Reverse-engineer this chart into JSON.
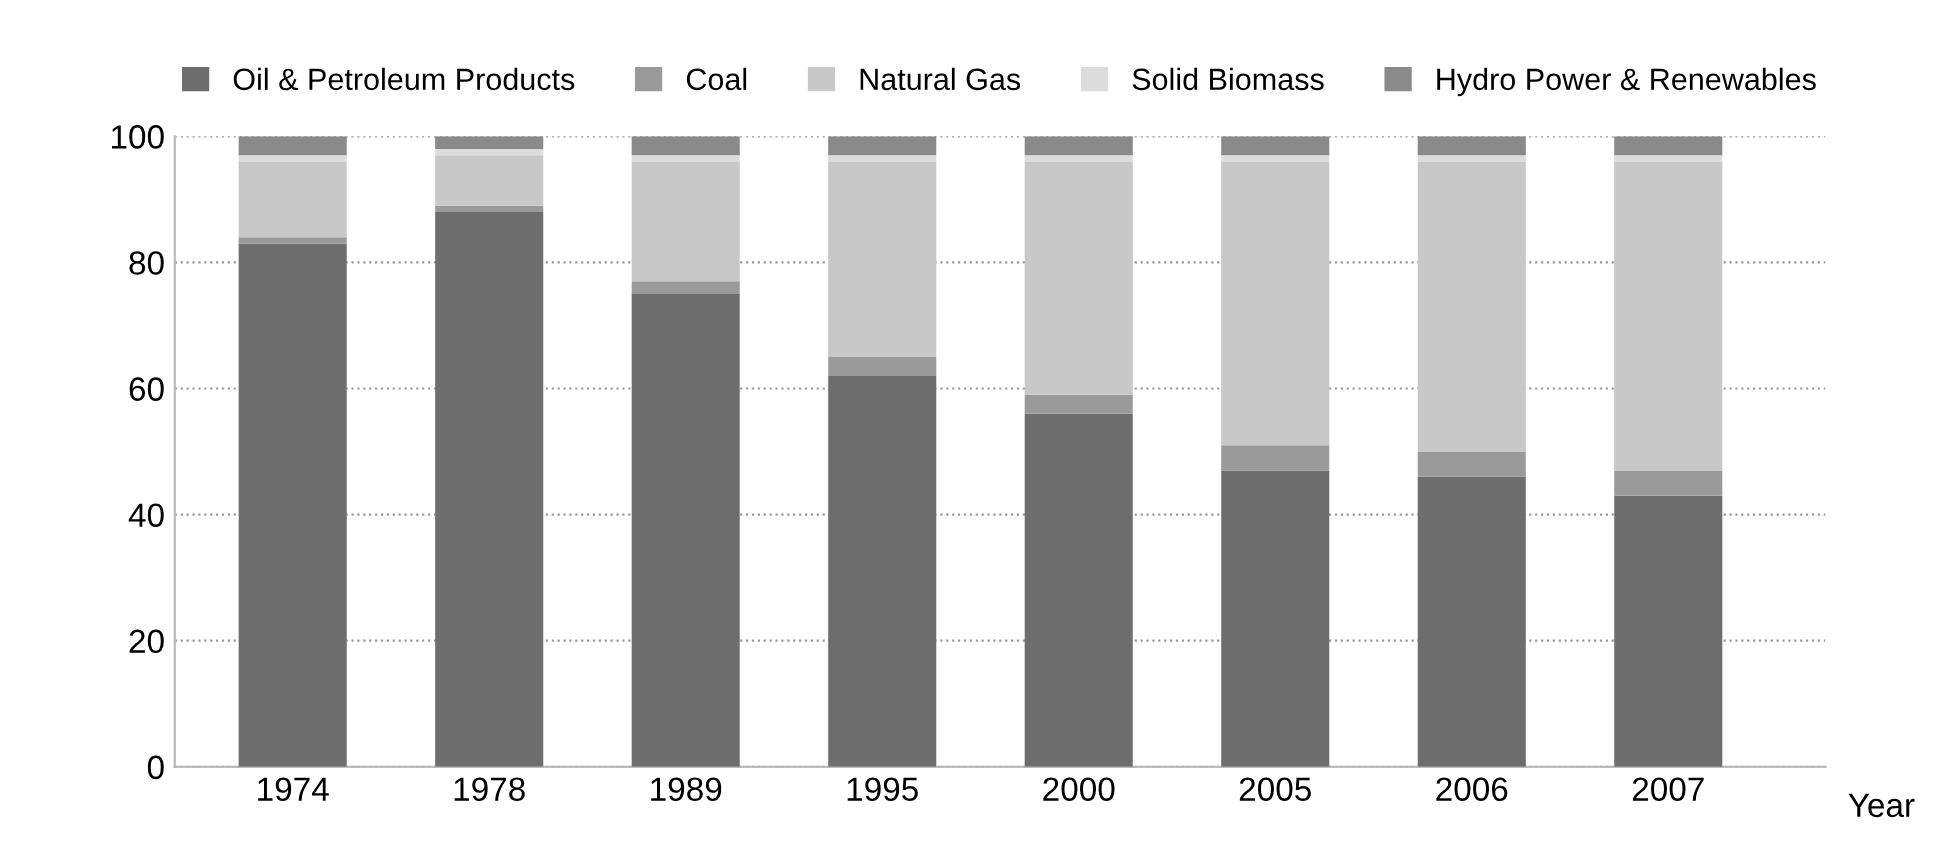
{
  "chart_data": {
    "type": "bar",
    "stacked": true,
    "xlabel": "Year",
    "categories": [
      "1974",
      "1978",
      "1989",
      "1995",
      "2000",
      "2005",
      "2006",
      "2007"
    ],
    "series": [
      {
        "name": "Oil & Petroleum Products",
        "color": "#6e6e6e",
        "values": [
          83,
          88,
          75,
          62,
          56,
          47,
          46,
          43
        ]
      },
      {
        "name": "Coal",
        "color": "#9a9a9a",
        "values": [
          1,
          1,
          2,
          3,
          3,
          4,
          4,
          4
        ]
      },
      {
        "name": "Natural Gas",
        "color": "#c8c8c8",
        "values": [
          12,
          8,
          19,
          31,
          37,
          45,
          46,
          49
        ]
      },
      {
        "name": "Solid Biomass",
        "color": "#dcdcdc",
        "values": [
          1,
          1,
          1,
          1,
          1,
          1,
          1,
          1
        ]
      },
      {
        "name": "Hydro Power & Renewables",
        "color": "#8a8a8a",
        "values": [
          3,
          2,
          3,
          3,
          3,
          3,
          3,
          3
        ]
      }
    ],
    "ylim": [
      0,
      100
    ],
    "yticks": [
      0,
      20,
      40,
      60,
      80,
      100
    ],
    "grid": "y",
    "legend": "top"
  }
}
